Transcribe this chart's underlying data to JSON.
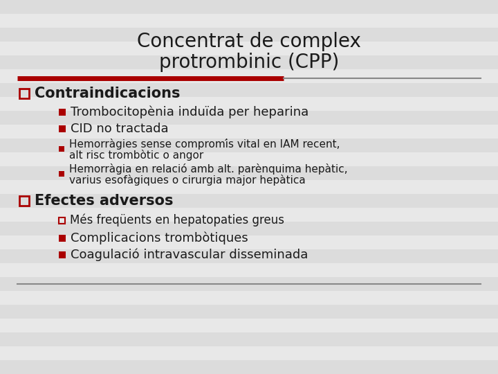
{
  "title_line1": "Concentrat de complex",
  "title_line2": "protrombinic (CPP)",
  "bg_color": "#e4e4e4",
  "stripe_color1": "#dcdcdc",
  "stripe_color2": "#e8e8e8",
  "title_color": "#1a1a1a",
  "text_color": "#1a1a1a",
  "red_color": "#aa0000",
  "section1_label": "Contraindicacions",
  "section2_label": "Efectes adversos",
  "bullet1a": "Trombocitopènia induïda per heparina",
  "bullet1b": "CID no tractada",
  "bullet1c_line1": "Hemorràgies sense compromís vital en IAM recent,",
  "bullet1c_line2": "alt risc trombòtic o angor",
  "bullet1d_line1": "Hemorràgia en relació amb alt. parènquima hepàtic,",
  "bullet1d_line2": "varius esofàgiques o cirurgia major hepàtica",
  "bullet2a": "Més freqüents en hepatopaties greus",
  "bullet2b": "Complicacions trombòtiques",
  "bullet2c": "Coagulació intravascular disseminada"
}
